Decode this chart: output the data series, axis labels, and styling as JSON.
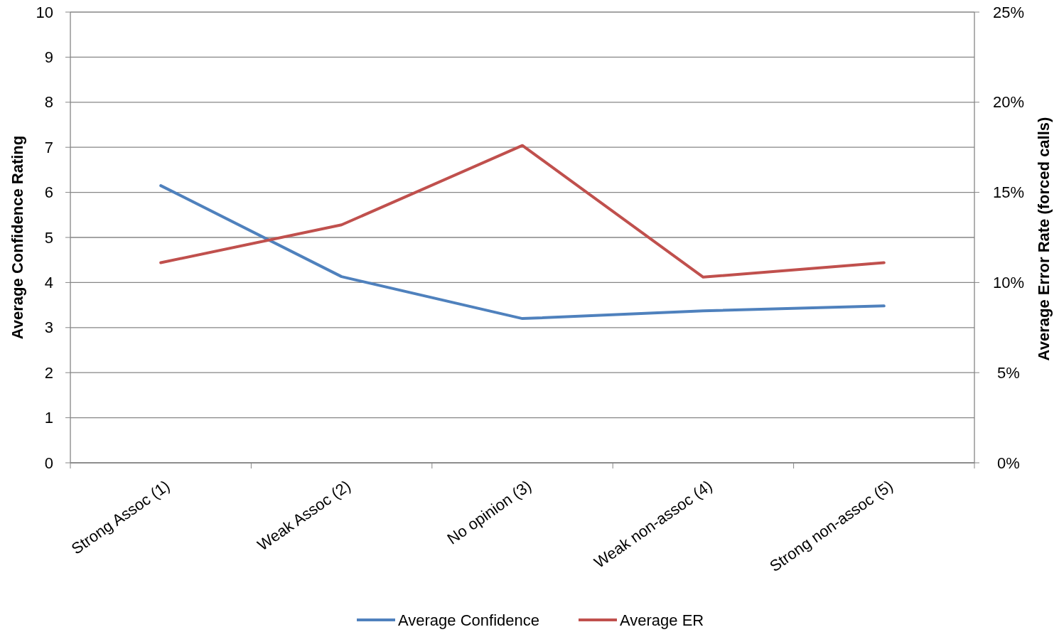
{
  "chart_data": {
    "type": "line",
    "categories": [
      "Strong Assoc (1)",
      "Weak Assoc (2)",
      "No opinion (3)",
      "Weak non-assoc (4)",
      "Strong non-assoc (5)"
    ],
    "series": [
      {
        "name": "Average Confidence",
        "color": "#4f81bd",
        "values": [
          6.15,
          4.13,
          3.2,
          3.37,
          3.48
        ]
      },
      {
        "name": "Average ER",
        "color": "#c0504d",
        "axis": "y2",
        "values": [
          11.1,
          13.2,
          17.6,
          10.3,
          11.1
        ]
      }
    ],
    "ylabel": "Average Confidence Rating",
    "y2label": "Average Error Rate (forced calls)",
    "ylim": [
      0,
      10
    ],
    "yticks": [
      0,
      1,
      2,
      3,
      4,
      5,
      6,
      7,
      8,
      9,
      10
    ],
    "y2lim": [
      0,
      25
    ],
    "y2ticks": [
      {
        "value": 0,
        "label": "0%"
      },
      {
        "value": 5,
        "label": "5%"
      },
      {
        "value": 10,
        "label": "10%"
      },
      {
        "value": 15,
        "label": "15%"
      },
      {
        "value": 20,
        "label": "20%"
      },
      {
        "value": 25,
        "label": "25%"
      }
    ],
    "grid": "y",
    "legend": "bottom",
    "marker": "none",
    "line_style": "solid"
  }
}
